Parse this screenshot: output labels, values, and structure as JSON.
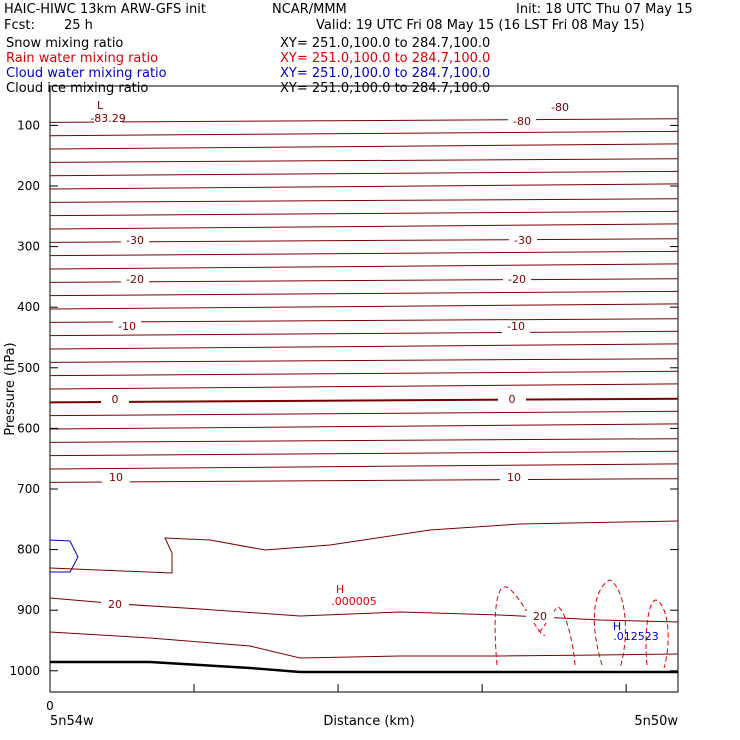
{
  "header": {
    "model": "HAIC-HIWC 13km ARW-GFS init",
    "org": "NCAR/MMM",
    "init": "Init: 18 UTC Thu 07 May 15",
    "fcst_label": "Fcst:",
    "fcst_value": "25 h",
    "valid": "Valid: 19 UTC Fri 08 May 15 (16 LST Fri 08 May 15)"
  },
  "fields": [
    {
      "name": "Snow mixing ratio",
      "xy": "XY= 251.0,100.0 to 284.7,100.0",
      "color": "#000000"
    },
    {
      "name": "Rain water mixing ratio",
      "xy": "XY= 251.0,100.0 to 284.7,100.0",
      "color": "#e00000"
    },
    {
      "name": "Cloud water mixing ratio",
      "xy": "XY= 251.0,100.0 to 284.7,100.0",
      "color": "#0000cc"
    },
    {
      "name": "Cloud ice mixing ratio",
      "xy": "XY= 251.0,100.0 to 284.7,100.0",
      "color": "#000000"
    }
  ],
  "chart_data": {
    "type": "cross-section contour",
    "ylabel": "Pressure (hPa)",
    "xlabel": "Distance (km)",
    "y_ticks": [
      100,
      200,
      300,
      400,
      500,
      600,
      700,
      800,
      900,
      1000
    ],
    "ylim": [
      1035,
      35
    ],
    "x_ticks_minor": 5,
    "x_start_label": "0",
    "left_location": "5n54w",
    "right_location": "5n50w",
    "contour_color": "#7a0000",
    "temperature_labels": [
      {
        "text": "-80",
        "id": "m80"
      },
      {
        "text": "-80",
        "id": "m80b"
      },
      {
        "text": "-83.29",
        "id": "min"
      },
      {
        "text": "-30",
        "id": "m30a"
      },
      {
        "text": "-30",
        "id": "m30b"
      },
      {
        "text": "-20",
        "id": "m20a"
      },
      {
        "text": "-20",
        "id": "m20b"
      },
      {
        "text": "-10",
        "id": "m10a"
      },
      {
        "text": "-10",
        "id": "m10b"
      },
      {
        "text": "0",
        "id": "z0a"
      },
      {
        "text": "0",
        "id": "z0b"
      },
      {
        "text": "10",
        "id": "p10a"
      },
      {
        "text": "10",
        "id": "p10b"
      },
      {
        "text": "20",
        "id": "p20a"
      },
      {
        "text": "20",
        "id": "p20b"
      }
    ],
    "extrema": [
      {
        "marker": "L",
        "value": "-83.29",
        "color": "#7a0000"
      },
      {
        "marker": "H",
        "value": ".000005",
        "color": "#e00000"
      },
      {
        "marker": "H",
        "value": ".012523",
        "color": "#0000cc"
      }
    ]
  }
}
